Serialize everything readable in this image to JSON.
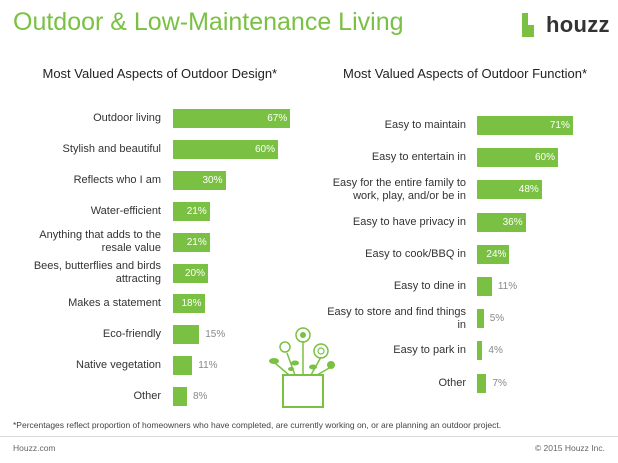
{
  "header": {
    "title": "Outdoor & Low-Maintenance Living",
    "logo_text": "houzz",
    "brand_color": "#7ac143"
  },
  "chart_data": [
    {
      "type": "bar",
      "orientation": "horizontal",
      "title": "Most Valued Aspects of Outdoor Design*",
      "categories": [
        "Outdoor living",
        "Stylish and beautiful",
        "Reflects who I am",
        "Water-efficient",
        "Anything that adds to the resale value",
        "Bees, butterflies and birds attracting",
        "Makes a statement",
        "Eco-friendly",
        "Native vegetation",
        "Other"
      ],
      "values": [
        67,
        60,
        30,
        21,
        21,
        20,
        18,
        15,
        11,
        8
      ],
      "value_labels": [
        "67%",
        "60%",
        "30%",
        "21%",
        "21%",
        "20%",
        "18%",
        "15%",
        "11%",
        "8%"
      ],
      "xlim": [
        0,
        100
      ],
      "grid": false,
      "legend": "none"
    },
    {
      "type": "bar",
      "orientation": "horizontal",
      "title": "Most Valued Aspects of Outdoor Function*",
      "categories": [
        "Easy to maintain",
        "Easy to entertain in",
        "Easy for the entire family to work, play, and/or be in",
        "Easy to have privacy in",
        "Easy to cook/BBQ in",
        "Easy to dine in",
        "Easy to store and find things in",
        "Easy to park in",
        "Other"
      ],
      "values": [
        71,
        60,
        48,
        36,
        24,
        11,
        5,
        4,
        7
      ],
      "value_labels": [
        "71%",
        "60%",
        "48%",
        "36%",
        "24%",
        "11%",
        "5%",
        "4%",
        "7%"
      ],
      "xlim": [
        0,
        100
      ],
      "grid": false,
      "legend": "none"
    }
  ],
  "footnote": "*Percentages reflect proportion of homeowners who have completed, are currently working on, or are planning an outdoor project.",
  "footer": {
    "left": "Houzz.com",
    "right": "© 2015 Houzz Inc."
  }
}
